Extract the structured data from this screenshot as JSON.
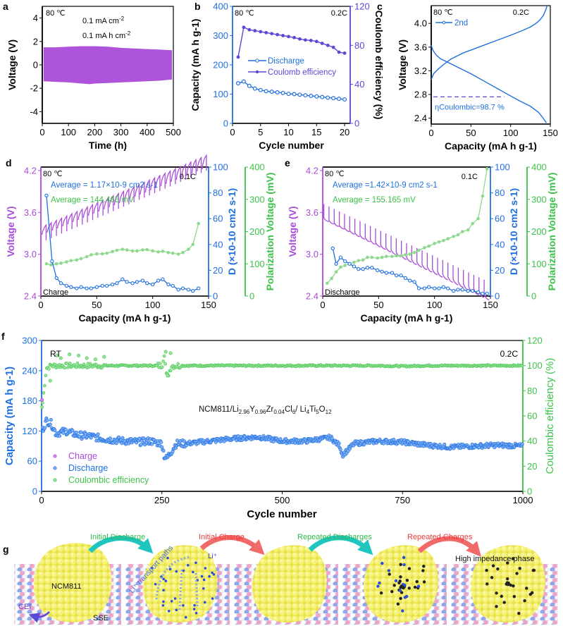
{
  "colors": {
    "purple": "#a94bd8",
    "blue": "#1f6fe0",
    "indigo": "#5a48d6",
    "green": "#3cc24a",
    "green_light": "#8fd98f",
    "cyan_arrow": "#1fc6c0",
    "red_arrow": "#f06a6a",
    "yellow": "#f2ee5a",
    "black": "#000000"
  },
  "chart_data": [
    {
      "panel": "a",
      "type": "area",
      "title": "",
      "xlabel": "Time (h)",
      "ylabel": "Voltage (V)",
      "xlim": [
        0,
        500
      ],
      "ylim": [
        -5,
        5
      ],
      "xticks": [
        0,
        100,
        200,
        300,
        400,
        500
      ],
      "yticks": [
        -4,
        -2,
        0,
        2,
        4
      ],
      "annotations": [
        "80 ℃",
        "0.1 mA cm-2",
        "0.1 mA h cm-2"
      ],
      "envelope": {
        "x": [
          5,
          50,
          100,
          150,
          180,
          200,
          250,
          300,
          350,
          400,
          450,
          495
        ],
        "upper": [
          1.5,
          1.5,
          1.55,
          1.6,
          1.6,
          1.6,
          1.55,
          1.45,
          1.4,
          1.35,
          1.3,
          1.25
        ],
        "lower": [
          -1.4,
          -1.45,
          -1.5,
          -1.6,
          -1.65,
          -1.6,
          -1.55,
          -1.5,
          -1.45,
          -1.4,
          -1.35,
          -1.25
        ]
      }
    },
    {
      "panel": "b",
      "type": "line",
      "xlabel": "Cycle number",
      "ylabel": "Capacity (mA h g-1)",
      "y2label": "Coulomb efficiency (%)",
      "xlim": [
        0,
        21
      ],
      "ylim": [
        0,
        400
      ],
      "y2lim": [
        0,
        120
      ],
      "xticks": [
        0,
        5,
        10,
        15,
        20
      ],
      "yticks": [
        0,
        100,
        200,
        300,
        400
      ],
      "y2ticks": [
        0,
        40,
        80,
        120
      ],
      "annotations": [
        "80 ℃",
        "0.2C"
      ],
      "x": [
        1,
        2,
        3,
        4,
        5,
        6,
        7,
        8,
        9,
        10,
        11,
        12,
        13,
        14,
        15,
        16,
        17,
        18,
        19,
        20
      ],
      "series": [
        {
          "name": "Discharge",
          "axis": "left",
          "values": [
            137,
            143,
            128,
            119,
            114,
            110,
            108,
            106,
            104,
            101,
            100,
            98,
            96,
            94,
            92,
            90,
            88,
            86,
            84,
            82
          ]
        },
        {
          "name": "Coulomb efficiency",
          "axis": "right",
          "values": [
            68,
            98.5,
            96,
            95,
            94,
            93,
            92,
            91,
            90,
            89,
            88,
            86.5,
            85.5,
            85,
            84,
            82,
            80,
            78,
            73,
            72
          ]
        }
      ]
    },
    {
      "panel": "c",
      "type": "line",
      "xlabel": "Capacity (mA h g-1)",
      "ylabel": "Voltage (V)",
      "xlim": [
        0,
        150
      ],
      "ylim": [
        2.3,
        4.3
      ],
      "xticks": [
        0,
        50,
        100,
        150
      ],
      "yticks": [
        2.4,
        2.8,
        3.2,
        3.6,
        4.0
      ],
      "annotations": [
        "80 ℃",
        "0.2C",
        "ηCoulombic=98.7 %"
      ],
      "legend": [
        "2nd"
      ],
      "series": [
        {
          "name": "charge",
          "x": [
            0,
            3,
            8,
            15,
            25,
            40,
            60,
            80,
            100,
            115,
            125,
            132,
            137,
            141,
            144,
            146
          ],
          "values": [
            3.05,
            3.15,
            3.22,
            3.3,
            3.4,
            3.5,
            3.6,
            3.7,
            3.8,
            3.88,
            3.94,
            4.0,
            4.06,
            4.13,
            4.22,
            4.3
          ]
        },
        {
          "name": "discharge",
          "x": [
            0,
            2,
            6,
            12,
            20,
            35,
            50,
            70,
            90,
            110,
            125,
            135,
            141,
            145
          ],
          "values": [
            3.63,
            3.55,
            3.47,
            3.4,
            3.35,
            3.25,
            3.15,
            3.0,
            2.85,
            2.7,
            2.6,
            2.5,
            2.4,
            2.32
          ]
        }
      ],
      "reference_line_y": 2.76
    },
    {
      "panel": "d",
      "type": "line",
      "xlabel": "Capacity (mA h g-1)",
      "ylabel": "Voltage (V)",
      "y2label": "D (×10-10 cm2 s-1)",
      "y3label": "Polarization Voltage (mV)",
      "xlim": [
        0,
        150
      ],
      "ylim": [
        2.4,
        4.25
      ],
      "y2lim": [
        0,
        100
      ],
      "y3lim": [
        0,
        400
      ],
      "xticks": [
        0,
        50,
        100,
        150
      ],
      "yticks": [
        2.4,
        3.0,
        3.6,
        4.2
      ],
      "y2ticks": [
        0,
        20,
        40,
        60,
        80,
        100
      ],
      "y3ticks": [
        0,
        100,
        200,
        300,
        400
      ],
      "annotations": [
        "80 ℃",
        "0.1C",
        "Average = 1.17×10-9  cm2 s-1",
        "Average = 144.465 mV",
        "Charge"
      ],
      "gitt": {
        "pulses": 32,
        "start_low": 3.28,
        "end_high": 4.25,
        "relax_drop": 0.22
      },
      "series": [
        {
          "name": "D",
          "axis": "y2",
          "x": [
            5,
            10,
            14,
            18,
            23,
            27,
            32,
            36,
            41,
            45,
            50,
            55,
            59,
            64,
            68,
            73,
            77,
            82,
            86,
            91,
            95,
            100,
            105,
            109,
            114,
            118,
            123,
            127,
            132,
            136,
            141
          ],
          "values": [
            78,
            27,
            14,
            10,
            8,
            7,
            6,
            7,
            6,
            6,
            7,
            8,
            8,
            9,
            10,
            13,
            11,
            10,
            11,
            12,
            10,
            9,
            12,
            13,
            9,
            8,
            5,
            6,
            5,
            4,
            6
          ]
        },
        {
          "name": "Polarization",
          "axis": "y3",
          "x": [
            5,
            9,
            14,
            18,
            23,
            27,
            32,
            36,
            41,
            45,
            50,
            55,
            59,
            64,
            68,
            73,
            77,
            82,
            86,
            91,
            95,
            100,
            105,
            109,
            114,
            118,
            123,
            127,
            132,
            136,
            141
          ],
          "values": [
            100,
            97,
            100,
            102,
            106,
            110,
            112,
            116,
            122,
            128,
            131,
            131,
            133,
            138,
            142,
            145,
            143,
            140,
            140,
            143,
            144,
            140,
            137,
            139,
            135,
            133,
            130,
            135,
            145,
            160,
            225
          ]
        }
      ]
    },
    {
      "panel": "e",
      "type": "line",
      "xlabel": "Capacity (mA h g-1)",
      "ylabel": "Voltage (V)",
      "y2label": "D (×10-10 cm2 s-1)",
      "y3label": "Polarization Voltage (mV)",
      "xlim": [
        0,
        150
      ],
      "ylim": [
        2.4,
        4.25
      ],
      "y2lim": [
        0,
        100
      ],
      "y3lim": [
        0,
        400
      ],
      "xticks": [
        0,
        50,
        100,
        150
      ],
      "yticks": [
        2.4,
        3.0,
        3.6,
        4.2
      ],
      "y2ticks": [
        0,
        20,
        40,
        60,
        80,
        100
      ],
      "y3ticks": [
        0,
        100,
        200,
        300,
        400
      ],
      "annotations": [
        "80 ℃",
        "0.1C",
        "Average =1.42×10-9  cm2 s-1",
        "Average = 155.165 mV",
        "Discharge"
      ],
      "gitt": {
        "pulses": 32,
        "start_high": 3.52,
        "end_low": 2.4,
        "relax_rise": 0.22
      },
      "series": [
        {
          "name": "D",
          "axis": "y2",
          "x": [
            9,
            12,
            16,
            20,
            24,
            28,
            32,
            36,
            40,
            44,
            49,
            53,
            57,
            62,
            66,
            70,
            74,
            78,
            82,
            86,
            91,
            95,
            100,
            104,
            108,
            112,
            117,
            121,
            125,
            130,
            134,
            139,
            143,
            147
          ],
          "values": [
            37,
            25,
            30,
            27,
            25,
            23,
            21,
            21,
            22,
            22,
            20,
            19,
            18,
            18,
            16,
            16,
            14,
            12,
            11,
            6,
            6,
            7,
            6,
            6,
            7,
            6,
            4,
            5,
            5,
            4,
            4,
            3,
            2,
            2
          ]
        },
        {
          "name": "Polarization",
          "axis": "y3",
          "x": [
            4,
            8,
            12,
            16,
            20,
            24,
            28,
            32,
            36,
            40,
            44,
            49,
            53,
            57,
            62,
            66,
            70,
            74,
            78,
            82,
            86,
            91,
            95,
            100,
            104,
            108,
            112,
            117,
            121,
            125,
            130,
            134,
            139,
            143,
            147
          ],
          "values": [
            40,
            55,
            75,
            90,
            95,
            100,
            105,
            110,
            112,
            120,
            120,
            118,
            120,
            123,
            123,
            125,
            125,
            128,
            130,
            135,
            142,
            150,
            155,
            163,
            168,
            172,
            178,
            185,
            190,
            200,
            205,
            225,
            240,
            310,
            395
          ]
        }
      ]
    },
    {
      "panel": "f",
      "type": "scatter",
      "xlabel": "Cycle number",
      "ylabel": "Capacity (mA h g-1)",
      "y2label": "Coulombic efficiency (%)",
      "xlim": [
        0,
        1000
      ],
      "ylim": [
        0,
        300
      ],
      "y2lim": [
        0,
        120
      ],
      "xticks": [
        0,
        250,
        500,
        750,
        1000
      ],
      "yticks": [
        0,
        60,
        120,
        180,
        240,
        300
      ],
      "y2ticks": [
        0,
        20,
        40,
        60,
        80,
        100,
        120
      ],
      "annotations": [
        "RT",
        "0.2C"
      ],
      "cell_label": {
        "main": "NCM811/Li",
        "s1": "2.96",
        "p2": "Y",
        "s2": "0.96",
        "p3": "Zr",
        "s3": "0.04",
        "p4": "Cl",
        "s4": "6",
        "p5": "/ Li",
        "s5": "4",
        "p6": "Ti",
        "s6": "5",
        "p7": "O",
        "s7": "12"
      },
      "legend": [
        "Charge",
        "Discharge",
        "Coulombic efficiency"
      ],
      "legend_position": "bottom-left",
      "series": [
        {
          "name": "Charge",
          "axis": "left",
          "first_value": 182,
          "trend": "overlaps discharge"
        },
        {
          "name": "Discharge",
          "axis": "left",
          "x": [
            1,
            10,
            20,
            30,
            50,
            75,
            100,
            125,
            150,
            175,
            200,
            225,
            250,
            255,
            260,
            270,
            280,
            300,
            350,
            400,
            450,
            500,
            550,
            600,
            620,
            625,
            650,
            700,
            750,
            800,
            850,
            900,
            950,
            1000
          ],
          "values": [
            120,
            140,
            135,
            115,
            120,
            112,
            110,
            105,
            102,
            100,
            98,
            100,
            95,
            70,
            65,
            80,
            95,
            95,
            100,
            105,
            108,
            100,
            100,
            107,
            90,
            72,
            95,
            100,
            98,
            92,
            88,
            90,
            92,
            90
          ]
        },
        {
          "name": "Coulombic efficiency",
          "axis": "right",
          "x": [
            1,
            10,
            20,
            50,
            100,
            150,
            200,
            250,
            255,
            260,
            270,
            300,
            400,
            500,
            600,
            700,
            750,
            800,
            900,
            1000
          ],
          "values": [
            67,
            98,
            100,
            100,
            100,
            100,
            100,
            100,
            110,
            90,
            100,
            100,
            100,
            100,
            100,
            100,
            99.5,
            100,
            100,
            100
          ]
        }
      ]
    }
  ],
  "panel_labels": [
    "a",
    "b",
    "c",
    "d",
    "e",
    "f",
    "g"
  ],
  "schematic": {
    "arrows": [
      {
        "label": "Initial Discharge",
        "color": "cyan"
      },
      {
        "label": "Initial Charge",
        "color": "red"
      },
      {
        "label": "Repeated Discharges",
        "color": "cyan"
      },
      {
        "label": "Repeated Charges",
        "color": "red"
      }
    ],
    "labels": {
      "particle": "NCM811",
      "cei": "CEI",
      "sse": "SSE",
      "paths": "Li⁺ transport paths",
      "li_ion": "Li⁺",
      "impedance": "High impedance phase"
    },
    "stages": 5
  }
}
